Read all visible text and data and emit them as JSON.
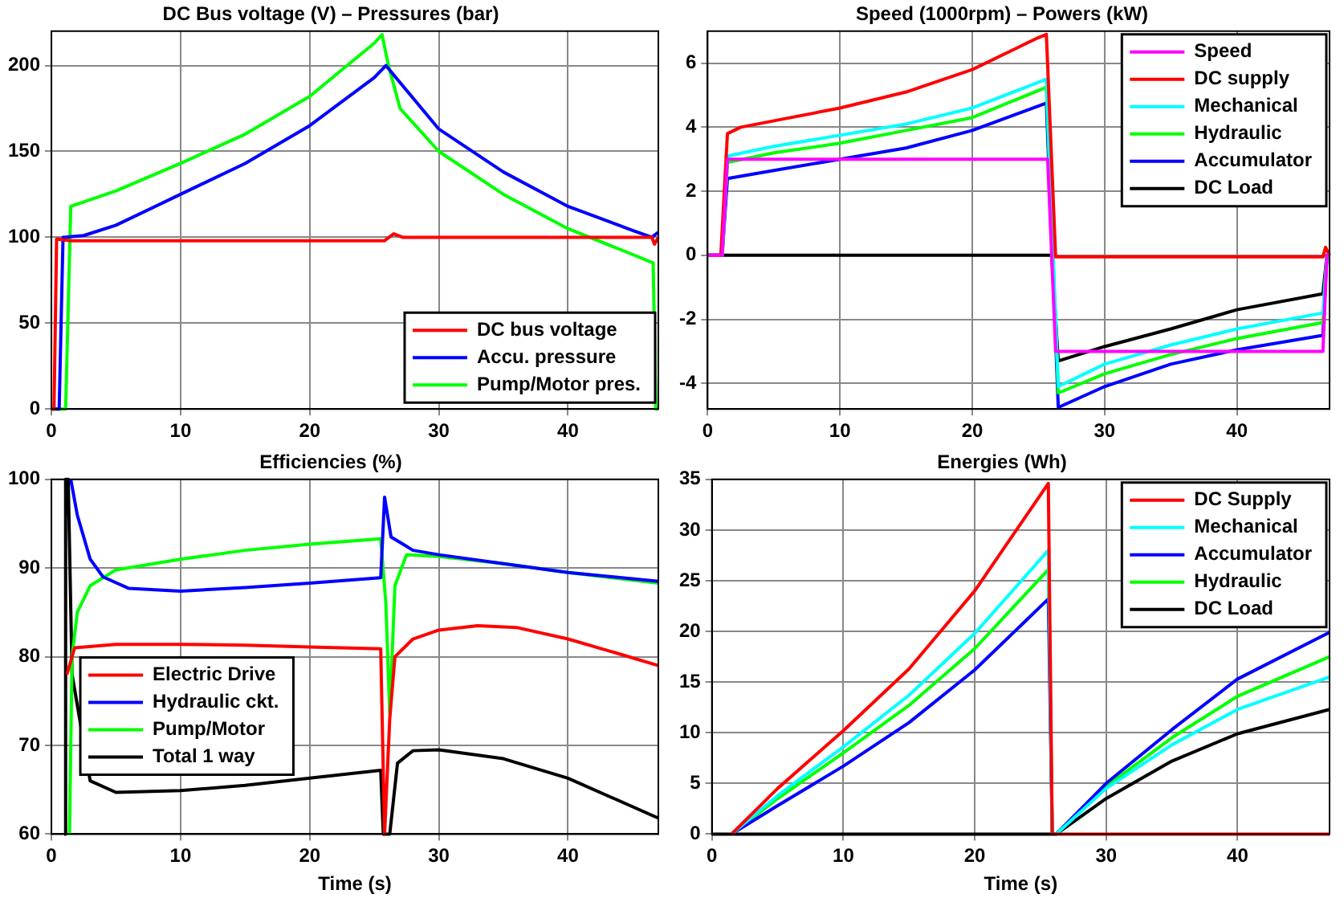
{
  "chart_data": [
    {
      "type": "line",
      "title": "DC Bus voltage (V) – Pressures (bar)",
      "xlim": [
        0,
        47
      ],
      "xticks": [
        0,
        10,
        20,
        30,
        40
      ],
      "ylim": [
        0,
        220
      ],
      "yticks": [
        0,
        50,
        100,
        150,
        200
      ],
      "grid": true,
      "legend": "bottom right",
      "marker": "none",
      "series": [
        {
          "name": "DC bus voltage",
          "color": "#ff0000",
          "x": [
            0,
            0.2,
            0.4,
            1.5,
            5,
            10,
            15,
            20,
            25,
            25.8,
            26.5,
            27.2,
            30,
            35,
            40,
            45,
            46.5,
            46.7,
            47
          ],
          "values": [
            0,
            0,
            99,
            98,
            98,
            98,
            98,
            98,
            98,
            98,
            102,
            100,
            100,
            100,
            100,
            100,
            100,
            96,
            100
          ]
        },
        {
          "name": "Accu. pressure",
          "color": "#0000ff",
          "x": [
            0,
            0.6,
            0.9,
            2.5,
            5,
            10,
            15,
            20,
            25,
            25.9,
            30,
            35,
            40,
            45,
            46.5,
            47
          ],
          "values": [
            0,
            0,
            100,
            101,
            107,
            125,
            143,
            165,
            193,
            200,
            163,
            138,
            118,
            104,
            100,
            103
          ]
        },
        {
          "name": "Pump/Motor pres.",
          "color": "#00ff00",
          "x": [
            0,
            1.1,
            1.5,
            5,
            10,
            15,
            20,
            25,
            25.6,
            26.1,
            27,
            30,
            35,
            40,
            45,
            46.6,
            46.8,
            47
          ],
          "values": [
            0,
            0,
            118,
            127,
            143,
            160,
            182,
            213,
            218,
            200,
            175,
            150,
            125,
            105,
            90,
            85,
            0,
            0
          ]
        }
      ]
    },
    {
      "type": "line",
      "title": "Speed (1000rpm) – Powers (kW)",
      "xlim": [
        0,
        47
      ],
      "xticks": [
        0,
        10,
        20,
        30,
        40
      ],
      "ylim": [
        -4.8,
        7
      ],
      "yticks": [
        -4,
        -2,
        0,
        2,
        4,
        6
      ],
      "grid": true,
      "legend": "top right",
      "marker": "none",
      "series": [
        {
          "name": "Speed",
          "color": "#ff00ff",
          "x": [
            0,
            1.1,
            1.5,
            25.7,
            26.3,
            46.5,
            46.8,
            47
          ],
          "values": [
            0,
            0,
            3,
            3,
            -3,
            -3,
            0,
            0
          ]
        },
        {
          "name": "DC supply",
          "color": "#ff0000",
          "x": [
            0,
            1.0,
            1.5,
            2.5,
            10,
            15,
            20,
            25,
            25.6,
            26.3,
            30,
            40,
            46.5,
            46.7,
            47
          ],
          "values": [
            0,
            0,
            3.8,
            4.0,
            4.6,
            5.1,
            5.8,
            6.8,
            6.9,
            -0.05,
            -0.05,
            -0.05,
            -0.05,
            0.25,
            0
          ]
        },
        {
          "name": "Mechanical",
          "color": "#00ffff",
          "x": [
            0,
            1.1,
            1.5,
            5,
            10,
            15,
            20,
            25.6,
            26.5,
            30,
            35,
            40,
            46.5,
            46.8,
            47
          ],
          "values": [
            0,
            0,
            3.1,
            3.4,
            3.75,
            4.1,
            4.6,
            5.5,
            -4.1,
            -3.4,
            -2.8,
            -2.3,
            -1.8,
            0,
            0
          ]
        },
        {
          "name": "Hydraulic",
          "color": "#00ff00",
          "x": [
            0,
            1.1,
            1.5,
            5,
            10,
            15,
            20,
            25.6,
            26.5,
            30,
            35,
            40,
            46.5,
            46.8,
            47
          ],
          "values": [
            0,
            0,
            2.9,
            3.2,
            3.5,
            3.9,
            4.3,
            5.25,
            -4.3,
            -3.7,
            -3.1,
            -2.6,
            -2.1,
            0,
            0
          ]
        },
        {
          "name": "Accumulator",
          "color": "#0000ff",
          "x": [
            0,
            1.1,
            1.5,
            5,
            10,
            15,
            20,
            25.6,
            26.5,
            30,
            35,
            40,
            46.5,
            46.8,
            47
          ],
          "values": [
            0,
            0,
            2.4,
            2.65,
            3.0,
            3.35,
            3.9,
            4.75,
            -4.75,
            -4.1,
            -3.4,
            -2.95,
            -2.5,
            0,
            0
          ]
        },
        {
          "name": "DC Load",
          "color": "#000000",
          "x": [
            0,
            26,
            26.5,
            30,
            35,
            40,
            46.5,
            46.8,
            47
          ],
          "values": [
            0,
            0,
            -3.3,
            -2.85,
            -2.3,
            -1.7,
            -1.2,
            0,
            0
          ]
        }
      ]
    },
    {
      "type": "line",
      "title": "Efficiencies (%)",
      "xlabel": "Time (s)",
      "xlim": [
        0,
        47
      ],
      "xticks": [
        0,
        10,
        20,
        30,
        40
      ],
      "ylim": [
        60,
        100
      ],
      "yticks": [
        60,
        70,
        80,
        90,
        100
      ],
      "grid": true,
      "legend": "bottom left",
      "marker": "none",
      "series": [
        {
          "name": "Electric Drive",
          "color": "#ff0000",
          "x": [
            1.2,
            1.8,
            5,
            10,
            15,
            20,
            25.5,
            25.8,
            26.2,
            26.6,
            28,
            30,
            33,
            36,
            40,
            44,
            47
          ],
          "values": [
            78,
            81,
            81.4,
            81.4,
            81.3,
            81.1,
            80.9,
            60,
            73,
            80,
            82,
            83,
            83.5,
            83.3,
            82,
            80.3,
            79
          ]
        },
        {
          "name": "Hydraulic ckt.",
          "color": "#0000ff",
          "x": [
            1.5,
            2,
            3,
            4,
            6,
            10,
            15,
            20,
            25.5,
            25.8,
            26.3,
            28,
            30,
            35,
            40,
            47
          ],
          "values": [
            100,
            96,
            91,
            89,
            87.7,
            87.4,
            87.8,
            88.3,
            88.9,
            98,
            93.5,
            92,
            91.5,
            90.5,
            89.5,
            88.5
          ]
        },
        {
          "name": "Pump/Motor",
          "color": "#00ff00",
          "x": [
            1.4,
            1.6,
            2,
            3,
            5,
            10,
            15,
            20,
            25.5,
            25.9,
            26.2,
            26.6,
            27.5,
            30,
            35,
            40,
            47
          ],
          "values": [
            60,
            80,
            85,
            88,
            89.8,
            91,
            92,
            92.7,
            93.3,
            86,
            73.5,
            88,
            91.5,
            91.3,
            90.5,
            89.5,
            88.3
          ]
        },
        {
          "name": "Total 1 way",
          "color": "#000000",
          "x": [
            1.0,
            1.1,
            1.3,
            1.6,
            3,
            5,
            10,
            15,
            20,
            25.5,
            25.7,
            26.2,
            26.8,
            28,
            30,
            35,
            40,
            47
          ],
          "values": [
            60,
            100,
            100,
            78,
            66,
            64.7,
            64.9,
            65.5,
            66.3,
            67.2,
            60,
            60,
            68,
            69.4,
            69.5,
            68.5,
            66.3,
            61.8
          ]
        }
      ]
    },
    {
      "type": "line",
      "title": "Energies (Wh)",
      "xlabel": "Time (s)",
      "xlim": [
        0,
        47
      ],
      "xticks": [
        0,
        10,
        20,
        30,
        40
      ],
      "ylim": [
        0,
        35
      ],
      "yticks": [
        0,
        5,
        10,
        15,
        20,
        25,
        30,
        35
      ],
      "grid": true,
      "legend": "top right",
      "marker": "none",
      "series": [
        {
          "name": "DC Supply",
          "color": "#ff0000",
          "x": [
            1.5,
            5,
            10,
            15,
            20,
            25.6,
            25.9,
            47
          ],
          "values": [
            0,
            4.5,
            10.2,
            16.3,
            24,
            34.6,
            0,
            0
          ]
        },
        {
          "name": "Mechanical",
          "color": "#00ffff",
          "x": [
            1.5,
            5,
            10,
            15,
            20,
            25.6,
            25.9,
            26.2,
            30,
            35,
            40,
            47
          ],
          "values": [
            0,
            3.8,
            8.6,
            13.7,
            19.8,
            28,
            0,
            0,
            4.5,
            8.8,
            12.3,
            15.5
          ]
        },
        {
          "name": "Accumulator",
          "color": "#0000ff",
          "x": [
            1.5,
            5,
            10,
            15,
            20,
            25.6,
            25.9,
            26.2,
            30,
            35,
            40,
            47
          ],
          "values": [
            0,
            2.8,
            6.7,
            11,
            16.2,
            23.2,
            0,
            0,
            5,
            10.3,
            15.3,
            19.9
          ]
        },
        {
          "name": "Hydraulic",
          "color": "#00ff00",
          "x": [
            1.5,
            5,
            10,
            15,
            20,
            25.6,
            25.9,
            26.2,
            30,
            35,
            40,
            47
          ],
          "values": [
            0,
            3.5,
            8,
            12.7,
            18.3,
            26.1,
            0,
            0,
            4.7,
            9.5,
            13.6,
            17.5
          ]
        },
        {
          "name": "DC Load",
          "color": "#000000",
          "x": [
            0,
            26.2,
            30,
            35,
            40,
            47
          ],
          "values": [
            0,
            0,
            3.5,
            7.2,
            9.9,
            12.3
          ]
        }
      ]
    }
  ]
}
